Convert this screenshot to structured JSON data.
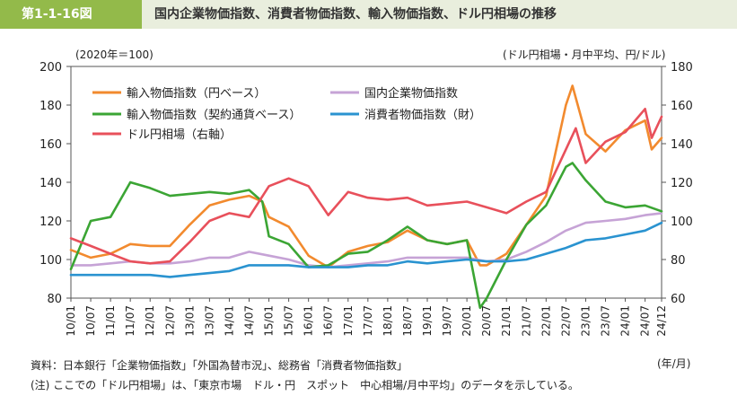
{
  "header": {
    "figure_number": "第1-1-16図",
    "title": "国内企業物価指数、消費者物価指数、輸入物価指数、ドル円相場の推移"
  },
  "units": {
    "left": "(2020年＝100)",
    "right": "(ドル円相場・月中平均、円/ドル)",
    "x": "(年/月)"
  },
  "notes": {
    "source": "資料：日本銀行「企業物価指数」「外国為替市況」、総務省「消費者物価指数」",
    "note": "(注) ここでの「ドル円相場」は、「東京市場　ドル・円　スポット　中心相場/月中平均」のデータを示している。"
  },
  "colors": {
    "import_yen": "#f28a2e",
    "import_contract": "#3ba534",
    "domestic_cgpi": "#c6a3d6",
    "cpi_goods": "#2a93d0",
    "usdjpy": "#e8505b"
  },
  "chart_data": {
    "type": "line",
    "x_ticks": [
      "10/01",
      "10/07",
      "11/01",
      "11/07",
      "12/01",
      "12/07",
      "13/01",
      "13/07",
      "14/01",
      "14/07",
      "15/01",
      "15/07",
      "16/01",
      "16/07",
      "17/01",
      "17/07",
      "18/01",
      "18/07",
      "19/01",
      "19/07",
      "20/01",
      "20/07",
      "21/01",
      "21/07",
      "22/01",
      "22/07",
      "23/01",
      "23/07",
      "24/01",
      "24/07",
      "24/12"
    ],
    "y_left": {
      "min": 80,
      "max": 200,
      "ticks": [
        80,
        100,
        120,
        140,
        160,
        180,
        200
      ]
    },
    "y_right": {
      "min": 60,
      "max": 180,
      "ticks": [
        60,
        80,
        100,
        120,
        140,
        160,
        180
      ]
    },
    "grid": false,
    "legend_position": "top-left",
    "series": [
      {
        "key": "import_yen",
        "name": "輸入物価指数（円ベース）",
        "axis": "left",
        "points": [
          [
            "10/01",
            105
          ],
          [
            "10/07",
            101
          ],
          [
            "11/01",
            103
          ],
          [
            "11/07",
            108
          ],
          [
            "12/01",
            107
          ],
          [
            "12/07",
            107
          ],
          [
            "13/01",
            118
          ],
          [
            "13/07",
            128
          ],
          [
            "14/01",
            131
          ],
          [
            "14/07",
            133
          ],
          [
            "14/11",
            130
          ],
          [
            "15/01",
            122
          ],
          [
            "15/07",
            117
          ],
          [
            "16/01",
            102
          ],
          [
            "16/07",
            96
          ],
          [
            "17/01",
            104
          ],
          [
            "17/07",
            107
          ],
          [
            "18/01",
            109
          ],
          [
            "18/07",
            115
          ],
          [
            "19/01",
            110
          ],
          [
            "19/07",
            108
          ],
          [
            "20/01",
            110
          ],
          [
            "20/05",
            97
          ],
          [
            "20/07",
            97
          ],
          [
            "21/01",
            103
          ],
          [
            "21/07",
            118
          ],
          [
            "22/01",
            133
          ],
          [
            "22/07",
            180
          ],
          [
            "22/09",
            190
          ],
          [
            "23/01",
            165
          ],
          [
            "23/07",
            156
          ],
          [
            "24/01",
            167
          ],
          [
            "24/07",
            172
          ],
          [
            "24/09",
            157
          ],
          [
            "24/12",
            163
          ]
        ]
      },
      {
        "key": "domestic_cgpi",
        "name": "国内企業物価指数",
        "axis": "left",
        "points": [
          [
            "10/01",
            97
          ],
          [
            "10/07",
            97
          ],
          [
            "11/01",
            98
          ],
          [
            "11/07",
            99
          ],
          [
            "12/01",
            98
          ],
          [
            "12/07",
            98
          ],
          [
            "13/01",
            99
          ],
          [
            "13/07",
            101
          ],
          [
            "14/01",
            101
          ],
          [
            "14/07",
            104
          ],
          [
            "15/01",
            102
          ],
          [
            "15/07",
            100
          ],
          [
            "16/01",
            97
          ],
          [
            "16/07",
            96
          ],
          [
            "17/01",
            97
          ],
          [
            "17/07",
            98
          ],
          [
            "18/01",
            99
          ],
          [
            "18/07",
            101
          ],
          [
            "19/01",
            101
          ],
          [
            "19/07",
            101
          ],
          [
            "20/01",
            101
          ],
          [
            "20/07",
            99
          ],
          [
            "21/01",
            100
          ],
          [
            "21/07",
            104
          ],
          [
            "22/01",
            109
          ],
          [
            "22/07",
            115
          ],
          [
            "23/01",
            119
          ],
          [
            "23/07",
            120
          ],
          [
            "24/01",
            121
          ],
          [
            "24/07",
            123
          ],
          [
            "24/12",
            124
          ]
        ]
      },
      {
        "key": "import_contract",
        "name": "輸入物価指数（契約通貨ベース）",
        "axis": "left",
        "points": [
          [
            "10/01",
            95
          ],
          [
            "10/07",
            120
          ],
          [
            "11/01",
            122
          ],
          [
            "11/07",
            140
          ],
          [
            "12/01",
            137
          ],
          [
            "12/07",
            133
          ],
          [
            "13/01",
            134
          ],
          [
            "13/07",
            135
          ],
          [
            "14/01",
            134
          ],
          [
            "14/07",
            136
          ],
          [
            "14/11",
            130
          ],
          [
            "15/01",
            112
          ],
          [
            "15/07",
            108
          ],
          [
            "16/01",
            96
          ],
          [
            "16/07",
            97
          ],
          [
            "17/01",
            103
          ],
          [
            "17/07",
            104
          ],
          [
            "18/01",
            110
          ],
          [
            "18/07",
            117
          ],
          [
            "19/01",
            110
          ],
          [
            "19/07",
            108
          ],
          [
            "20/01",
            110
          ],
          [
            "20/05",
            75
          ],
          [
            "20/07",
            80
          ],
          [
            "21/01",
            100
          ],
          [
            "21/07",
            118
          ],
          [
            "22/01",
            128
          ],
          [
            "22/07",
            148
          ],
          [
            "22/09",
            150
          ],
          [
            "23/01",
            141
          ],
          [
            "23/07",
            130
          ],
          [
            "24/01",
            127
          ],
          [
            "24/07",
            128
          ],
          [
            "24/12",
            125
          ]
        ]
      },
      {
        "key": "cpi_goods",
        "name": "消費者物価指数（財）",
        "axis": "left",
        "points": [
          [
            "10/01",
            92
          ],
          [
            "10/07",
            92
          ],
          [
            "11/01",
            92
          ],
          [
            "11/07",
            92
          ],
          [
            "12/01",
            92
          ],
          [
            "12/07",
            91
          ],
          [
            "13/01",
            92
          ],
          [
            "13/07",
            93
          ],
          [
            "14/01",
            94
          ],
          [
            "14/07",
            97
          ],
          [
            "15/01",
            97
          ],
          [
            "15/07",
            97
          ],
          [
            "16/01",
            96
          ],
          [
            "16/07",
            96
          ],
          [
            "17/01",
            96
          ],
          [
            "17/07",
            97
          ],
          [
            "18/01",
            97
          ],
          [
            "18/07",
            99
          ],
          [
            "19/01",
            98
          ],
          [
            "19/07",
            99
          ],
          [
            "20/01",
            100
          ],
          [
            "20/07",
            99
          ],
          [
            "21/01",
            99
          ],
          [
            "21/07",
            100
          ],
          [
            "22/01",
            103
          ],
          [
            "22/07",
            106
          ],
          [
            "23/01",
            110
          ],
          [
            "23/07",
            111
          ],
          [
            "24/01",
            113
          ],
          [
            "24/07",
            115
          ],
          [
            "24/12",
            119
          ]
        ]
      },
      {
        "key": "usdjpy",
        "name": "ドル円相場（右軸）",
        "axis": "right",
        "points": [
          [
            "10/01",
            91
          ],
          [
            "10/07",
            87
          ],
          [
            "11/01",
            83
          ],
          [
            "11/07",
            79
          ],
          [
            "12/01",
            78
          ],
          [
            "12/07",
            79
          ],
          [
            "13/01",
            89
          ],
          [
            "13/07",
            100
          ],
          [
            "14/01",
            104
          ],
          [
            "14/07",
            102
          ],
          [
            "15/01",
            118
          ],
          [
            "15/07",
            122
          ],
          [
            "16/01",
            118
          ],
          [
            "16/07",
            103
          ],
          [
            "17/01",
            115
          ],
          [
            "17/07",
            112
          ],
          [
            "18/01",
            111
          ],
          [
            "18/07",
            112
          ],
          [
            "19/01",
            108
          ],
          [
            "19/07",
            109
          ],
          [
            "20/01",
            110
          ],
          [
            "20/07",
            107
          ],
          [
            "21/01",
            104
          ],
          [
            "21/07",
            110
          ],
          [
            "22/01",
            115
          ],
          [
            "22/07",
            137
          ],
          [
            "22/10",
            148
          ],
          [
            "23/01",
            130
          ],
          [
            "23/07",
            141
          ],
          [
            "24/01",
            146
          ],
          [
            "24/07",
            158
          ],
          [
            "24/09",
            143
          ],
          [
            "24/12",
            154
          ]
        ]
      }
    ]
  }
}
